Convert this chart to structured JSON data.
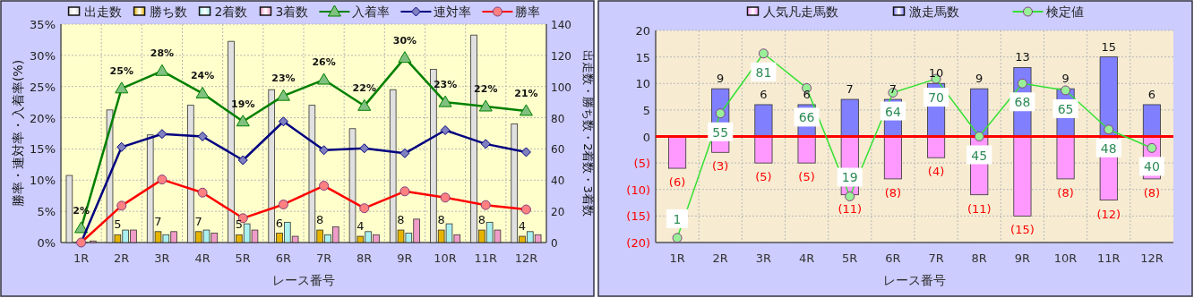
{
  "chart_data": [
    {
      "type": "bar",
      "xlabel": "レース番号",
      "ylabel": "勝率・連対率・入着率(%)",
      "y2label": "出走数・勝ち数・2着数・3着数",
      "categories": [
        "1R",
        "2R",
        "3R",
        "4R",
        "5R",
        "6R",
        "7R",
        "8R",
        "9R",
        "10R",
        "11R",
        "12R"
      ],
      "series": [
        {
          "name": "出走数",
          "color": "#e0e0e0",
          "axis": "y2",
          "values": [
            43,
            85,
            69,
            88,
            129,
            98,
            88,
            73,
            98,
            111,
            133,
            76
          ]
        },
        {
          "name": "勝ち数",
          "color": "#e6b400",
          "axis": "y2",
          "values": [
            0,
            5,
            7,
            7,
            5,
            6,
            8,
            4,
            8,
            8,
            8,
            4
          ],
          "value_labels": [
            null,
            "5",
            "7",
            "7",
            "5",
            "6",
            "8",
            "4",
            "8",
            "8",
            "8",
            "4"
          ]
        },
        {
          "name": "2着数",
          "color": "#aaf0f0",
          "axis": "y2",
          "values": [
            0,
            8,
            5,
            8,
            12,
            13,
            5,
            7,
            6,
            12,
            13,
            7
          ]
        },
        {
          "name": "3着数",
          "color": "#f09cc8",
          "axis": "y2",
          "values": [
            1,
            8,
            7,
            6,
            8,
            4,
            10,
            5,
            15,
            5,
            8,
            5
          ]
        },
        {
          "name": "入着率",
          "type": "line",
          "marker": "triangle",
          "color": "#008000",
          "values": [
            2.3,
            24.7,
            27.5,
            23.9,
            19.4,
            23.5,
            26.1,
            21.9,
            29.6,
            22.5,
            21.8,
            21.1
          ],
          "value_labels": [
            "2%",
            "25%",
            "28%",
            "24%",
            "19%",
            "23%",
            "26%",
            "22%",
            "30%",
            "23%",
            "22%",
            "21%"
          ]
        },
        {
          "name": "連対率",
          "type": "line",
          "marker": "diamond",
          "color": "#000080",
          "values": [
            0,
            15.3,
            17.4,
            17.0,
            13.2,
            19.4,
            14.8,
            15.1,
            14.3,
            18.0,
            15.8,
            14.5
          ]
        },
        {
          "name": "勝率",
          "type": "line",
          "marker": "circle",
          "color": "#ff0000",
          "values": [
            0,
            5.9,
            10.1,
            8.0,
            3.9,
            6.1,
            9.1,
            5.5,
            8.2,
            7.2,
            6.0,
            5.3
          ]
        }
      ],
      "ylim": [
        0,
        35
      ],
      "yticks": [
        {
          "value": 0,
          "label": "0%"
        },
        {
          "value": 5,
          "label": "5%"
        },
        {
          "value": 10,
          "label": "10%"
        },
        {
          "value": 15,
          "label": "15%"
        },
        {
          "value": 20,
          "label": "20%"
        },
        {
          "value": 25,
          "label": "25%"
        },
        {
          "value": 30,
          "label": "30%"
        },
        {
          "value": 35,
          "label": "35%"
        }
      ],
      "y2lim": [
        0,
        140
      ],
      "y2ticks": [
        0,
        20,
        40,
        60,
        80,
        100,
        120,
        140
      ],
      "grid": true,
      "legend": "top"
    },
    {
      "type": "bar",
      "xlabel": "レース番号",
      "stacked": true,
      "categories": [
        "1R",
        "2R",
        "3R",
        "4R",
        "5R",
        "6R",
        "7R",
        "8R",
        "9R",
        "10R",
        "11R",
        "12R"
      ],
      "series": [
        {
          "name": "人気凡走馬数",
          "color": "#ff99ff",
          "values": [
            -6,
            -3,
            -5,
            -5,
            -11,
            -8,
            -4,
            -11,
            -15,
            -8,
            -12,
            -8
          ],
          "value_labels": [
            "(6)",
            "(3)",
            "(5)",
            "(5)",
            "(11)",
            "(8)",
            "(4)",
            "(11)",
            "(15)",
            "(8)",
            "(12)",
            "(8)"
          ]
        },
        {
          "name": "激走馬数",
          "color": "#8080ff",
          "values": [
            null,
            9,
            6,
            6,
            7,
            7,
            10,
            9,
            13,
            9,
            15,
            6
          ],
          "value_labels": [
            null,
            "9",
            "6",
            "6",
            "7",
            "7",
            "10",
            "9",
            "13",
            "9",
            "15",
            "6"
          ]
        },
        {
          "name": "検定値",
          "type": "line",
          "marker": "circle",
          "color": "#33e033",
          "axis": "y2",
          "values": [
            1,
            55,
            81,
            66,
            19,
            64,
            70,
            45,
            68,
            65,
            48,
            40
          ],
          "value_labels": [
            "1",
            "55",
            "81",
            "66",
            "19",
            "64",
            "70",
            "45",
            "68",
            "65",
            "48",
            "40"
          ]
        }
      ],
      "ylim": [
        -20,
        20
      ],
      "yticks": [
        {
          "value": 20,
          "label": "20"
        },
        {
          "value": 15,
          "label": "15"
        },
        {
          "value": 10,
          "label": "10"
        },
        {
          "value": 5,
          "label": "5"
        },
        {
          "value": 0,
          "label": "0"
        },
        {
          "value": -5,
          "label": "(5)"
        },
        {
          "value": -10,
          "label": "(10)"
        },
        {
          "value": -15,
          "label": "(15)"
        },
        {
          "value": -20,
          "label": "(20)"
        }
      ],
      "y2lim": [
        -1,
        91
      ],
      "ref_lines": [
        {
          "axis": "y",
          "value": 0,
          "color": "#ff0000"
        }
      ],
      "grid": true,
      "legend": "top"
    }
  ]
}
